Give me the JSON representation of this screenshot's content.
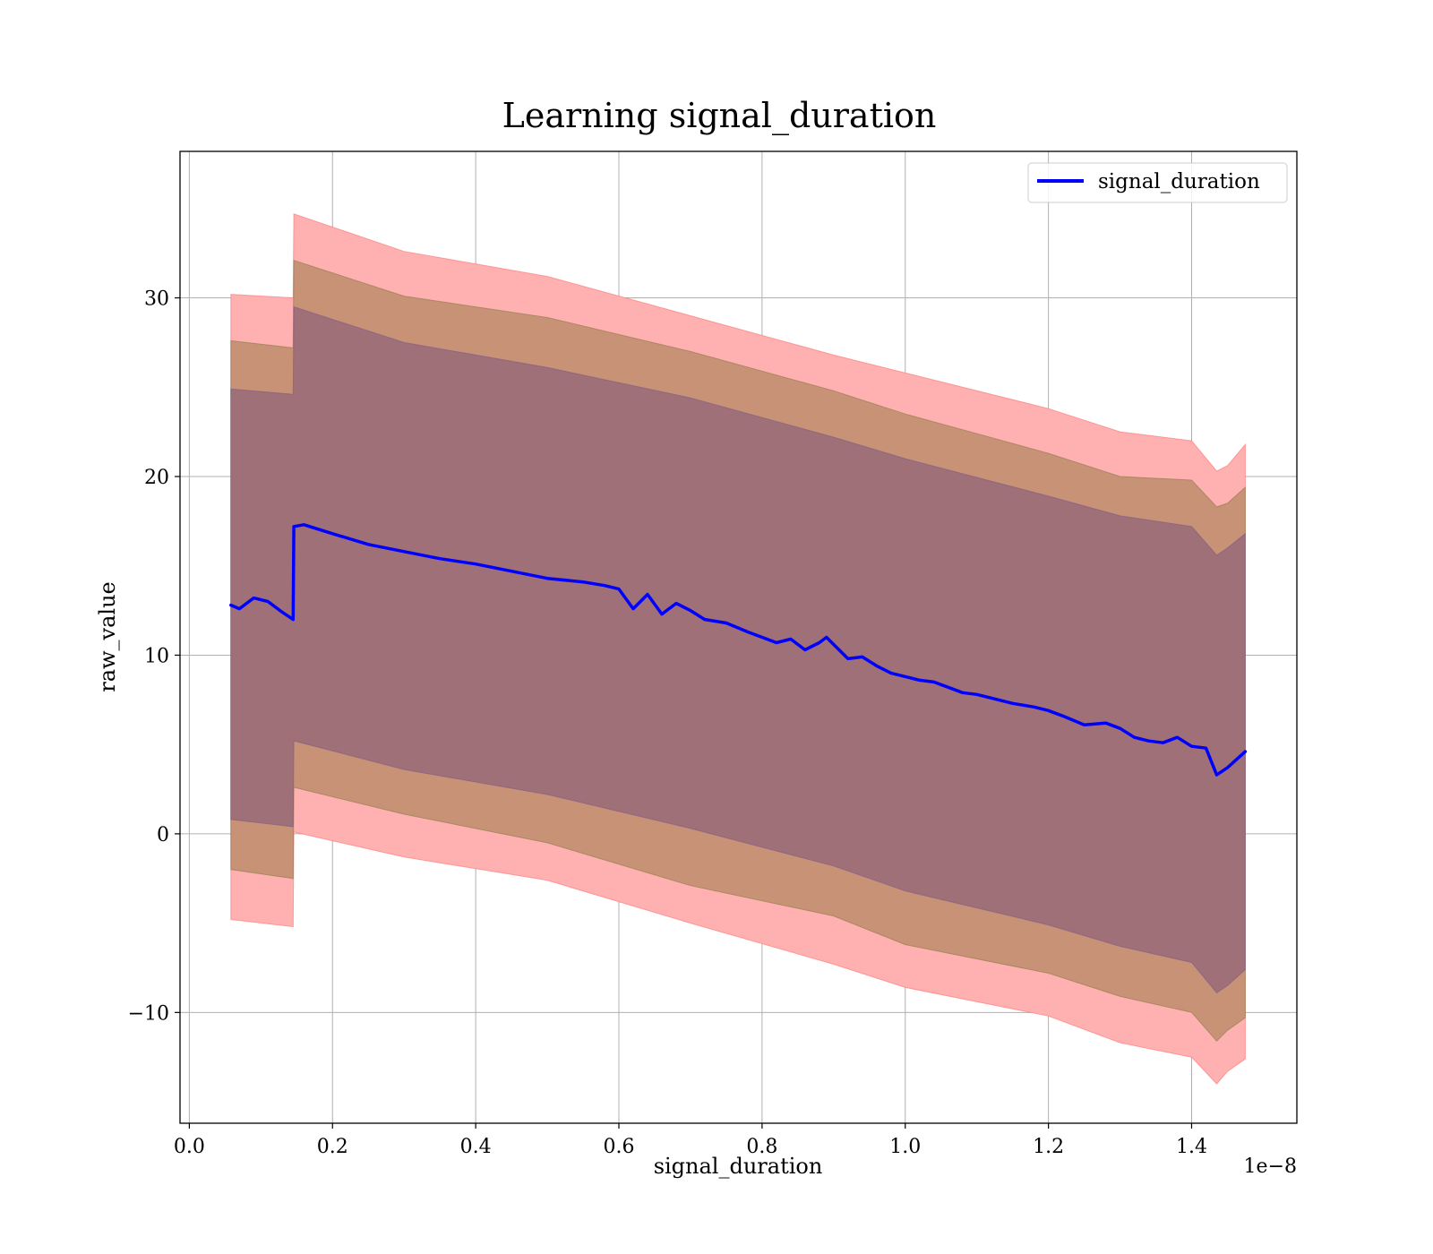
{
  "chart_data": {
    "type": "line",
    "title": "Learning signal_duration",
    "xlabel": "signal_duration",
    "ylabel": "raw_value",
    "x_offset_label": "1e−8",
    "xlim": [
      -0.013,
      1.547
    ],
    "ylim": [
      -16.2,
      38.2
    ],
    "xticks": [
      0.0,
      0.2,
      0.4,
      0.6,
      0.8,
      1.0,
      1.2,
      1.4
    ],
    "xtick_labels": [
      "0.0",
      "0.2",
      "0.4",
      "0.6",
      "0.8",
      "1.0",
      "1.2",
      "1.4"
    ],
    "yticks": [
      -10,
      0,
      10,
      20,
      30
    ],
    "ytick_labels": [
      "−10",
      "0",
      "10",
      "20",
      "30"
    ],
    "grid": true,
    "legend_position": "top-right",
    "colors": {
      "line": "#0000ff",
      "band_outer": "#ffb0b0",
      "band_outer_edge": "#ff7070",
      "band_middle": "#c89276",
      "band_middle_edge": "#8b7a4a",
      "band_inner": "#a07078",
      "band_inner_edge": "#7a5a8a",
      "grid": "#b0b0b0"
    },
    "series": [
      {
        "name": "signal_duration",
        "x": [
          0.058,
          0.07,
          0.09,
          0.11,
          0.13,
          0.145,
          0.146,
          0.16,
          0.2,
          0.25,
          0.3,
          0.35,
          0.4,
          0.45,
          0.5,
          0.55,
          0.58,
          0.6,
          0.62,
          0.64,
          0.66,
          0.68,
          0.7,
          0.72,
          0.75,
          0.78,
          0.8,
          0.82,
          0.84,
          0.86,
          0.88,
          0.89,
          0.9,
          0.92,
          0.94,
          0.96,
          0.98,
          1.0,
          1.02,
          1.04,
          1.06,
          1.08,
          1.1,
          1.12,
          1.15,
          1.18,
          1.2,
          1.22,
          1.25,
          1.28,
          1.3,
          1.32,
          1.34,
          1.36,
          1.38,
          1.4,
          1.42,
          1.435,
          1.45,
          1.475
        ],
        "values": [
          12.8,
          12.6,
          13.2,
          13.0,
          12.4,
          12.0,
          17.2,
          17.3,
          16.8,
          16.2,
          15.8,
          15.4,
          15.1,
          14.7,
          14.3,
          14.1,
          13.9,
          13.7,
          12.6,
          13.4,
          12.3,
          12.9,
          12.5,
          12.0,
          11.8,
          11.3,
          11.0,
          10.7,
          10.9,
          10.3,
          10.7,
          11.0,
          10.6,
          9.8,
          9.9,
          9.4,
          9.0,
          8.8,
          8.6,
          8.5,
          8.2,
          7.9,
          7.8,
          7.6,
          7.3,
          7.1,
          6.9,
          6.6,
          6.1,
          6.2,
          5.9,
          5.4,
          5.2,
          5.1,
          5.4,
          4.9,
          4.8,
          3.3,
          3.7,
          4.6
        ]
      }
    ],
    "bands": [
      {
        "level": "outer",
        "x": [
          0.058,
          0.145,
          0.146,
          0.3,
          0.5,
          0.7,
          0.9,
          1.0,
          1.2,
          1.3,
          1.4,
          1.435,
          1.45,
          1.475
        ],
        "upper": [
          30.2,
          30.0,
          34.7,
          32.6,
          31.2,
          29.0,
          26.8,
          25.8,
          23.8,
          22.5,
          22.0,
          20.3,
          20.6,
          21.8
        ],
        "lower": [
          -4.8,
          -5.2,
          0.1,
          -1.3,
          -2.6,
          -5.0,
          -7.3,
          -8.6,
          -10.2,
          -11.7,
          -12.5,
          -14.0,
          -13.3,
          -12.6
        ]
      },
      {
        "level": "middle",
        "x": [
          0.058,
          0.145,
          0.146,
          0.3,
          0.5,
          0.7,
          0.9,
          1.0,
          1.2,
          1.3,
          1.4,
          1.435,
          1.45,
          1.475
        ],
        "upper": [
          27.6,
          27.2,
          32.1,
          30.1,
          28.9,
          27.0,
          24.8,
          23.5,
          21.3,
          20.0,
          19.8,
          18.3,
          18.5,
          19.4
        ],
        "lower": [
          -2.0,
          -2.5,
          2.6,
          1.1,
          -0.5,
          -2.9,
          -4.6,
          -6.2,
          -7.8,
          -9.1,
          -10.0,
          -11.6,
          -11.0,
          -10.3
        ]
      },
      {
        "level": "inner",
        "x": [
          0.058,
          0.145,
          0.146,
          0.3,
          0.5,
          0.7,
          0.9,
          1.0,
          1.2,
          1.3,
          1.4,
          1.435,
          1.45,
          1.475
        ],
        "upper": [
          24.9,
          24.6,
          29.5,
          27.5,
          26.1,
          24.4,
          22.2,
          21.0,
          18.9,
          17.8,
          17.2,
          15.6,
          16.0,
          16.8
        ],
        "lower": [
          0.8,
          0.4,
          5.2,
          3.6,
          2.2,
          0.3,
          -1.8,
          -3.2,
          -5.1,
          -6.3,
          -7.2,
          -8.9,
          -8.5,
          -7.6
        ]
      }
    ]
  }
}
